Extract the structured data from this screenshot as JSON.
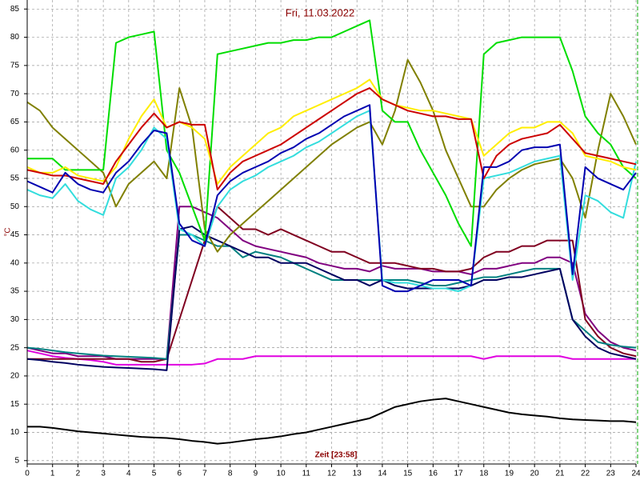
{
  "chart_data": {
    "type": "line",
    "title": "Fri, 11.03.2022",
    "y_label": "°C",
    "x_label": "Zeit [23:58]",
    "x": [
      0,
      0.5,
      1,
      1.5,
      2,
      2.5,
      3,
      3.5,
      4,
      4.5,
      5,
      5.5,
      6,
      6.5,
      7,
      7.5,
      8,
      8.5,
      9,
      9.5,
      10,
      10.5,
      11,
      11.5,
      12,
      12.5,
      13,
      13.5,
      14,
      14.5,
      15,
      15.5,
      16,
      16.5,
      17,
      17.5,
      18,
      18.5,
      19,
      19.5,
      20,
      20.5,
      21,
      21.5,
      22,
      22.5,
      23,
      23.5,
      24
    ],
    "xlim": [
      0,
      24
    ],
    "xticks": [
      0,
      1,
      2,
      3,
      4,
      5,
      6,
      7,
      8,
      9,
      10,
      11,
      12,
      13,
      14,
      15,
      16,
      17,
      18,
      19,
      20,
      21,
      22,
      23,
      24
    ],
    "ylim": [
      4.4,
      86.6
    ],
    "yticks": [
      5,
      10,
      15,
      20,
      25,
      30,
      35,
      40,
      45,
      50,
      55,
      60,
      65,
      70,
      75,
      80,
      85
    ],
    "grid": true,
    "series": [
      {
        "color": "#000000",
        "values": [
          11,
          11,
          10.8,
          10.5,
          10.2,
          10,
          9.8,
          9.6,
          9.4,
          9.2,
          9.1,
          9,
          8.8,
          8.5,
          8.3,
          8,
          8.2,
          8.5,
          8.8,
          9,
          9.3,
          9.7,
          10,
          10.5,
          11,
          11.5,
          12,
          12.5,
          13.5,
          14.5,
          15,
          15.5,
          15.8,
          16,
          15.5,
          15,
          14.5,
          14,
          13.5,
          13.2,
          13,
          12.8,
          12.5,
          12.3,
          12.2,
          12.1,
          12,
          12,
          11.8
        ]
      },
      {
        "color": "#e000e0",
        "values": [
          24.5,
          24,
          23.5,
          23.2,
          23,
          22.8,
          22.5,
          22,
          22,
          22,
          22,
          22,
          22,
          22,
          22.2,
          23,
          23,
          23,
          23.5,
          23.5,
          23.5,
          23.5,
          23.5,
          23.5,
          23.5,
          23.5,
          23.5,
          23.5,
          23.5,
          23.5,
          23.5,
          23.5,
          23.5,
          23.5,
          23.5,
          23.5,
          23,
          23.5,
          23.5,
          23.5,
          23.5,
          23.5,
          23.5,
          23,
          23,
          23,
          23,
          23,
          23
        ]
      },
      {
        "color": "#800080",
        "values": [
          25,
          24.5,
          24,
          24,
          23.5,
          23.5,
          23.5,
          23,
          23,
          23,
          23,
          23,
          50,
          50,
          49,
          48,
          46,
          44,
          43,
          42.5,
          42,
          41.5,
          41,
          40,
          39.5,
          39,
          39,
          38.5,
          39.5,
          39,
          39,
          39,
          38.5,
          38.5,
          38.5,
          38,
          39,
          39,
          39.5,
          40,
          40,
          41,
          41,
          40,
          31,
          28,
          26,
          25,
          24.5
        ]
      },
      {
        "color": "#800020",
        "values": [
          23,
          23,
          23,
          23,
          23,
          23,
          23,
          23,
          23,
          22.5,
          22.5,
          23,
          30,
          37,
          44,
          50,
          48,
          46,
          46,
          45,
          46,
          45,
          44,
          43,
          42,
          42,
          41,
          40,
          40,
          40,
          39.5,
          39,
          39,
          38.5,
          38.5,
          39,
          41,
          42,
          42,
          43,
          43,
          44,
          44,
          44,
          30,
          27,
          25,
          24,
          23.5
        ]
      },
      {
        "color": "#008080",
        "values": [
          25,
          24.8,
          24.5,
          24.2,
          24,
          23.8,
          23.6,
          23.5,
          23.4,
          23.3,
          23.2,
          23,
          45,
          45,
          44,
          43,
          43,
          41,
          42,
          41.5,
          41,
          40,
          39,
          38,
          37,
          37,
          37,
          37,
          37,
          37,
          37,
          36.5,
          36,
          36,
          36.5,
          37,
          37.5,
          37.5,
          38,
          38.5,
          39,
          39,
          39,
          30,
          28,
          26,
          25.5,
          25.2,
          25
        ]
      },
      {
        "color": "#000060",
        "values": [
          23,
          22.8,
          22.5,
          22.3,
          22,
          21.8,
          21.6,
          21.5,
          21.4,
          21.3,
          21.2,
          21,
          46,
          46.5,
          45,
          44,
          43,
          42,
          41,
          41,
          40,
          40,
          40,
          39,
          38,
          37,
          37,
          36,
          37,
          36,
          35.5,
          35.5,
          35.5,
          35.5,
          35.5,
          36,
          37,
          37,
          37.5,
          37.5,
          38,
          38.5,
          39,
          30,
          27,
          25,
          24,
          23.5,
          23
        ]
      },
      {
        "color": "#808000",
        "values": [
          68.5,
          67,
          64,
          62,
          60,
          58,
          56,
          50,
          54,
          56,
          58,
          55,
          71,
          64,
          46,
          42,
          45,
          47,
          49,
          51,
          53,
          55,
          57,
          59,
          61,
          62.5,
          64,
          65,
          61,
          67,
          76,
          72,
          67,
          60,
          55,
          50,
          50,
          53,
          55,
          56.5,
          57.5,
          58,
          58.5,
          55,
          48,
          60,
          70,
          66,
          61
        ]
      },
      {
        "color": "#00dd00",
        "values": [
          58.5,
          58.5,
          58.5,
          56.5,
          56.5,
          56.5,
          56.5,
          79,
          80,
          80.5,
          81,
          60,
          56,
          50,
          44,
          77,
          77.5,
          78,
          78.5,
          79,
          79,
          79.5,
          79.5,
          80,
          80,
          81,
          82,
          83,
          67,
          65,
          65,
          60,
          56,
          52,
          47,
          43,
          77,
          79,
          79.5,
          80,
          80,
          80,
          80,
          74,
          66,
          63,
          61,
          57,
          55
        ]
      },
      {
        "color": "#33dddd",
        "values": [
          53,
          52,
          51.5,
          54,
          51,
          49.5,
          48.5,
          55,
          57,
          60,
          64,
          62,
          46,
          45,
          43,
          50,
          53,
          54.5,
          55.5,
          57,
          58,
          59,
          60.5,
          61.5,
          63,
          64.5,
          66,
          67,
          37,
          36.5,
          36.5,
          36,
          35.5,
          35.5,
          35,
          36,
          55,
          55.5,
          56,
          57,
          58,
          58.5,
          59,
          37,
          52,
          51,
          49,
          48,
          58
        ]
      },
      {
        "color": "#ffee00",
        "values": [
          57,
          56,
          56,
          57,
          55.5,
          55,
          54.5,
          57,
          62,
          66,
          69,
          64,
          65,
          64,
          62,
          54,
          57,
          59,
          61,
          63,
          64,
          66,
          67,
          68,
          69,
          70,
          71,
          72.5,
          69,
          68,
          67.5,
          67,
          67,
          66.5,
          66,
          65.5,
          59,
          61,
          63,
          64,
          64,
          65,
          65,
          63,
          59,
          58.5,
          58,
          57,
          56.5
        ]
      },
      {
        "color": "#cc0000",
        "values": [
          56.5,
          56,
          55.5,
          55.5,
          55,
          54.5,
          54,
          58,
          61,
          64,
          66.5,
          64,
          65,
          64.5,
          64.5,
          53,
          56,
          58,
          59,
          60,
          61,
          62.5,
          64,
          65.5,
          67,
          68.5,
          70,
          71,
          69,
          68,
          67,
          66.5,
          66,
          66,
          65.5,
          65.5,
          55,
          59,
          61,
          62,
          62.5,
          63,
          64.5,
          62,
          59.5,
          59,
          58.5,
          58,
          57.5
        ]
      },
      {
        "color": "#0000b0",
        "values": [
          54.5,
          53.5,
          52.5,
          56,
          54,
          53,
          52.5,
          56,
          58,
          61,
          63.5,
          63,
          47,
          44,
          43,
          52,
          54.5,
          56,
          57,
          58,
          59.5,
          60.5,
          62,
          63,
          64.5,
          66,
          67,
          68,
          36,
          35,
          35,
          36,
          37,
          37,
          37,
          36,
          57,
          57,
          58,
          60,
          60.5,
          60.5,
          61,
          38,
          57,
          55,
          54,
          53,
          56
        ]
      }
    ]
  }
}
